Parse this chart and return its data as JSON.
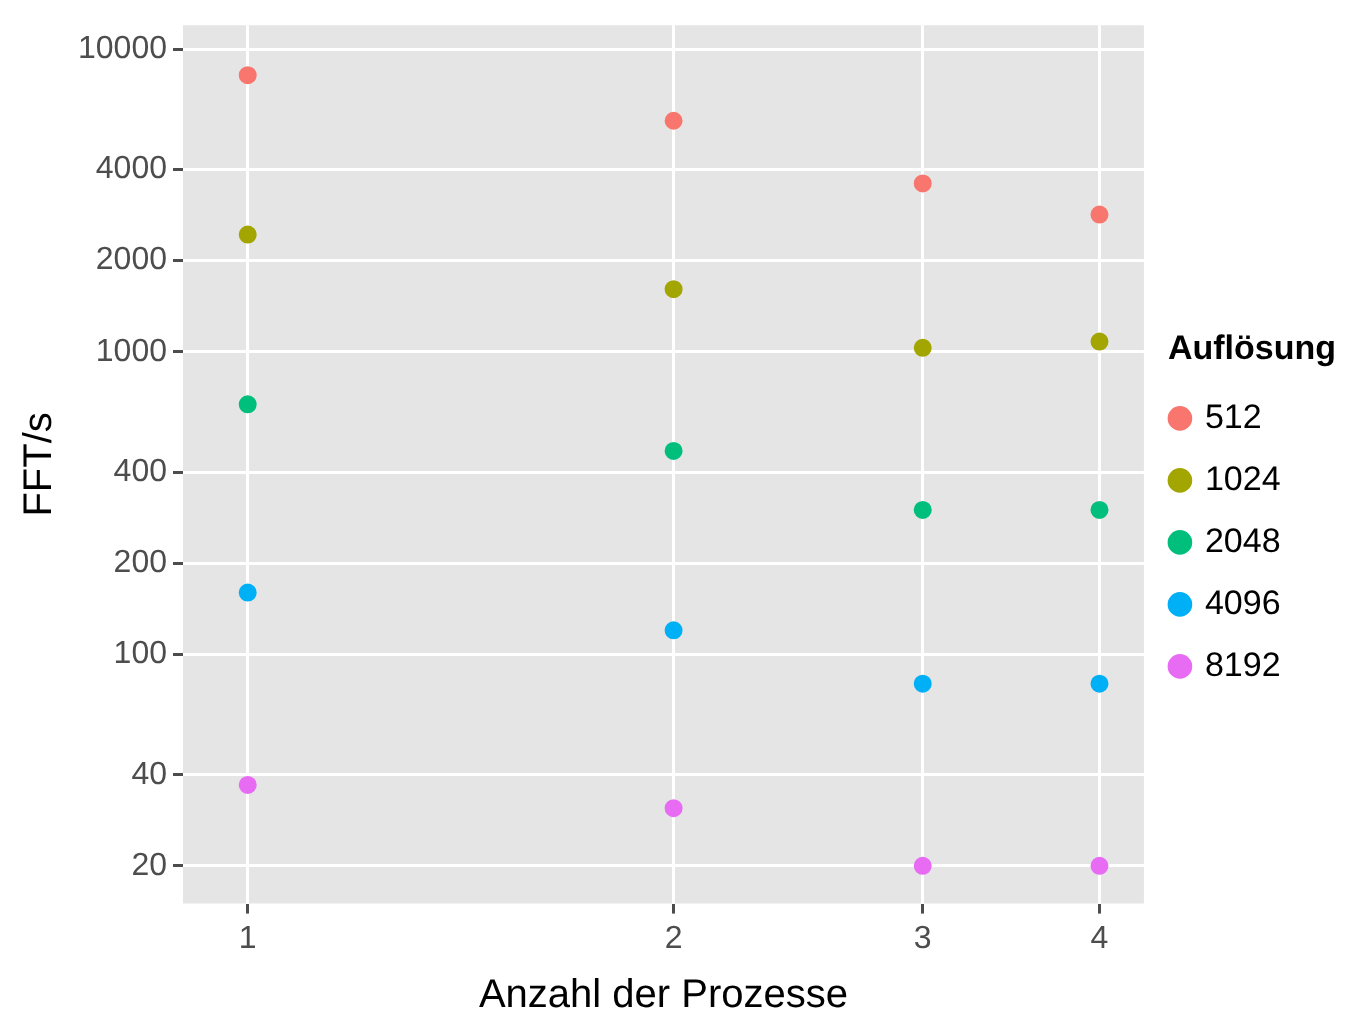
{
  "chart_data": {
    "type": "scatter",
    "xlabel": "Anzahl der Prozesse",
    "ylabel": "FFT/s",
    "legend_title": "Auflösung",
    "log": "xy",
    "grid": true,
    "legend": "right",
    "marker": "circle",
    "x": [
      1,
      2,
      3,
      4
    ],
    "xlim": [
      0.9,
      4.3
    ],
    "xticks": [
      1,
      2,
      3,
      4
    ],
    "ylim": [
      15,
      12000
    ],
    "yticks": [
      20,
      40,
      100,
      200,
      400,
      1000,
      2000,
      4000,
      10000
    ],
    "series": [
      {
        "name": "512",
        "color": "#f8766d",
        "values": [
          8200,
          5800,
          3600,
          2840
        ]
      },
      {
        "name": "1024",
        "color": "#a3a500",
        "values": [
          2440,
          1610,
          1030,
          1080
        ]
      },
      {
        "name": "2048",
        "color": "#00bf7d",
        "values": [
          670,
          470,
          300,
          300
        ]
      },
      {
        "name": "4096",
        "color": "#00b0f6",
        "values": [
          160,
          120,
          80,
          80
        ]
      },
      {
        "name": "8192",
        "color": "#e76bf3",
        "values": [
          37,
          31,
          20,
          20
        ]
      }
    ]
  }
}
